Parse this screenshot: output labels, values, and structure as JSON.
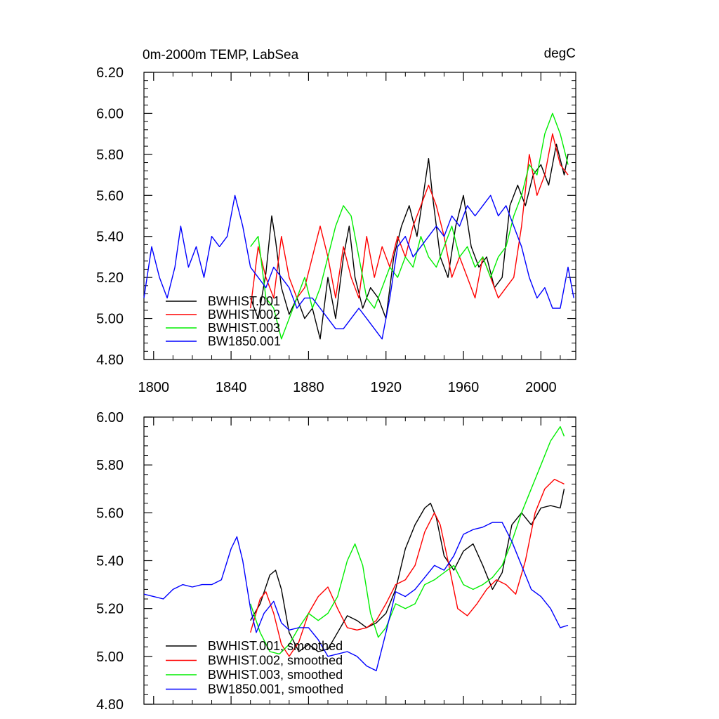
{
  "figure": {
    "title_left": "0m-2000m TEMP, LabSea",
    "title_right": "degC"
  },
  "colors": {
    "BWHIST.001": "#000000",
    "BWHIST.002": "#ff0000",
    "BWHIST.003": "#00ee00",
    "BW1850.001": "#0000ff"
  },
  "chart_data": [
    {
      "type": "line",
      "title": "0m-2000m TEMP, LabSea",
      "units": "degC",
      "xlim": [
        1795,
        2018
      ],
      "ylim": [
        4.8,
        6.2
      ],
      "xticks": [
        1800,
        1840,
        1880,
        1920,
        1960,
        2000
      ],
      "xtick_labels": [
        "1800",
        "1840",
        "1880",
        "1920",
        "1960",
        "2000"
      ],
      "yticks": [
        4.8,
        5.0,
        5.2,
        5.4,
        5.6,
        5.8,
        6.0,
        6.2
      ],
      "ytick_labels": [
        "4.80",
        "5.00",
        "5.20",
        "5.40",
        "5.60",
        "5.80",
        "6.00",
        "6.20"
      ],
      "legend_position": "bottom-left",
      "series": [
        {
          "name": "BWHIST.001",
          "key": "BWHIST.001",
          "x": [
            1850,
            1854,
            1858,
            1861,
            1863,
            1866,
            1870,
            1874,
            1878,
            1882,
            1886,
            1890,
            1894,
            1898,
            1901,
            1904,
            1908,
            1912,
            1916,
            1920,
            1924,
            1928,
            1932,
            1936,
            1940,
            1942,
            1944,
            1948,
            1952,
            1956,
            1960,
            1964,
            1968,
            1972,
            1976,
            1980,
            1984,
            1988,
            1992,
            1996,
            2000,
            2004,
            2008,
            2012,
            2014
          ],
          "y": [
            5.1,
            5.0,
            5.22,
            5.5,
            5.38,
            5.15,
            5.02,
            5.1,
            5.0,
            5.05,
            4.9,
            5.2,
            5.0,
            5.3,
            5.45,
            5.2,
            5.05,
            5.15,
            5.1,
            5.0,
            5.3,
            5.45,
            5.55,
            5.4,
            5.65,
            5.78,
            5.6,
            5.3,
            5.2,
            5.45,
            5.6,
            5.35,
            5.25,
            5.3,
            5.15,
            5.2,
            5.55,
            5.65,
            5.55,
            5.7,
            5.75,
            5.65,
            5.85,
            5.7,
            5.8
          ]
        },
        {
          "name": "BWHIST.002",
          "key": "BWHIST.002",
          "x": [
            1850,
            1854,
            1858,
            1862,
            1866,
            1870,
            1874,
            1878,
            1882,
            1886,
            1890,
            1894,
            1898,
            1902,
            1906,
            1910,
            1914,
            1918,
            1922,
            1926,
            1930,
            1934,
            1938,
            1942,
            1946,
            1950,
            1954,
            1958,
            1962,
            1966,
            1970,
            1974,
            1978,
            1982,
            1986,
            1990,
            1994,
            1998,
            2002,
            2006,
            2010,
            2014
          ],
          "y": [
            5.05,
            5.35,
            5.2,
            5.1,
            5.4,
            5.2,
            5.1,
            5.15,
            5.3,
            5.45,
            5.3,
            5.1,
            5.35,
            5.2,
            5.1,
            5.4,
            5.2,
            5.35,
            5.25,
            5.4,
            5.3,
            5.45,
            5.55,
            5.65,
            5.55,
            5.4,
            5.2,
            5.3,
            5.2,
            5.1,
            5.3,
            5.2,
            5.1,
            5.15,
            5.2,
            5.45,
            5.8,
            5.6,
            5.7,
            5.9,
            5.75,
            5.7
          ]
        },
        {
          "name": "BWHIST.003",
          "key": "BWHIST.003",
          "x": [
            1850,
            1854,
            1858,
            1862,
            1866,
            1870,
            1874,
            1878,
            1882,
            1886,
            1890,
            1894,
            1898,
            1902,
            1906,
            1910,
            1914,
            1918,
            1922,
            1926,
            1930,
            1934,
            1938,
            1942,
            1946,
            1950,
            1954,
            1958,
            1962,
            1966,
            1970,
            1974,
            1978,
            1982,
            1986,
            1990,
            1994,
            1998,
            2002,
            2006,
            2010,
            2014
          ],
          "y": [
            5.35,
            5.4,
            5.1,
            5.05,
            4.9,
            5.0,
            5.1,
            5.2,
            5.05,
            5.15,
            5.3,
            5.45,
            5.55,
            5.5,
            5.3,
            5.1,
            5.05,
            5.15,
            5.25,
            5.2,
            5.3,
            5.25,
            5.4,
            5.3,
            5.25,
            5.35,
            5.45,
            5.3,
            5.35,
            5.25,
            5.3,
            5.2,
            5.3,
            5.35,
            5.5,
            5.6,
            5.75,
            5.7,
            5.9,
            6.0,
            5.9,
            5.75
          ]
        },
        {
          "name": "BW1850.001",
          "key": "BW1850.001",
          "x": [
            1795,
            1799,
            1803,
            1807,
            1811,
            1814,
            1818,
            1822,
            1826,
            1830,
            1834,
            1838,
            1842,
            1846,
            1850,
            1854,
            1858,
            1862,
            1866,
            1870,
            1874,
            1878,
            1882,
            1886,
            1890,
            1894,
            1898,
            1902,
            1906,
            1910,
            1914,
            1918,
            1922,
            1926,
            1930,
            1934,
            1938,
            1942,
            1946,
            1950,
            1954,
            1958,
            1962,
            1966,
            1970,
            1974,
            1978,
            1982,
            1986,
            1990,
            1994,
            1998,
            2002,
            2006,
            2010,
            2014,
            2017
          ],
          "y": [
            5.1,
            5.35,
            5.2,
            5.1,
            5.25,
            5.45,
            5.25,
            5.35,
            5.2,
            5.4,
            5.35,
            5.4,
            5.6,
            5.45,
            5.25,
            5.2,
            5.15,
            5.25,
            5.2,
            5.15,
            5.05,
            5.1,
            5.1,
            5.05,
            5.0,
            4.95,
            4.95,
            5.0,
            5.05,
            5.0,
            4.95,
            4.9,
            5.1,
            5.35,
            5.4,
            5.3,
            5.35,
            5.4,
            5.45,
            5.4,
            5.5,
            5.45,
            5.55,
            5.5,
            5.55,
            5.6,
            5.5,
            5.55,
            5.45,
            5.35,
            5.2,
            5.1,
            5.15,
            5.05,
            5.05,
            5.25,
            5.1
          ]
        }
      ]
    },
    {
      "type": "line",
      "title": "",
      "xlim": [
        1795,
        2018
      ],
      "ylim": [
        4.8,
        6.0
      ],
      "xticks": [
        1800,
        1840,
        1880,
        1920,
        1960,
        2000
      ],
      "yticks": [
        4.8,
        5.0,
        5.2,
        5.4,
        5.6,
        5.8,
        6.0
      ],
      "ytick_labels": [
        "4.80",
        "5.00",
        "5.20",
        "5.40",
        "5.60",
        "5.80",
        "6.00"
      ],
      "legend_position": "bottom-left",
      "series": [
        {
          "name": "BWHIST.001, smoothed",
          "key": "BWHIST.001",
          "x": [
            1850,
            1855,
            1860,
            1863,
            1866,
            1870,
            1875,
            1880,
            1885,
            1890,
            1895,
            1900,
            1905,
            1910,
            1915,
            1920,
            1925,
            1930,
            1935,
            1940,
            1943,
            1946,
            1950,
            1955,
            1960,
            1965,
            1970,
            1975,
            1980,
            1985,
            1990,
            1995,
            2000,
            2005,
            2010,
            2012
          ],
          "y": [
            5.15,
            5.22,
            5.34,
            5.36,
            5.28,
            5.1,
            5.02,
            5.05,
            5.02,
            5.03,
            5.1,
            5.17,
            5.15,
            5.12,
            5.14,
            5.18,
            5.28,
            5.45,
            5.55,
            5.62,
            5.64,
            5.58,
            5.42,
            5.36,
            5.44,
            5.47,
            5.38,
            5.28,
            5.35,
            5.55,
            5.6,
            5.55,
            5.62,
            5.63,
            5.62,
            5.7
          ]
        },
        {
          "name": "BWHIST.002, smoothed",
          "key": "BWHIST.002",
          "x": [
            1850,
            1855,
            1858,
            1862,
            1866,
            1870,
            1875,
            1880,
            1885,
            1890,
            1895,
            1900,
            1905,
            1910,
            1915,
            1920,
            1925,
            1930,
            1935,
            1940,
            1945,
            1948,
            1952,
            1957,
            1962,
            1967,
            1972,
            1977,
            1982,
            1987,
            1992,
            1997,
            2002,
            2007,
            2012
          ],
          "y": [
            5.1,
            5.24,
            5.27,
            5.18,
            5.05,
            5.0,
            5.06,
            5.18,
            5.25,
            5.29,
            5.2,
            5.12,
            5.11,
            5.12,
            5.15,
            5.22,
            5.3,
            5.32,
            5.38,
            5.52,
            5.6,
            5.55,
            5.4,
            5.2,
            5.17,
            5.22,
            5.28,
            5.32,
            5.3,
            5.26,
            5.4,
            5.6,
            5.7,
            5.74,
            5.72
          ]
        },
        {
          "name": "BWHIST.003, smoothed",
          "key": "BWHIST.003",
          "x": [
            1850,
            1855,
            1860,
            1865,
            1870,
            1875,
            1880,
            1885,
            1890,
            1895,
            1900,
            1904,
            1908,
            1912,
            1916,
            1920,
            1925,
            1930,
            1935,
            1940,
            1945,
            1950,
            1955,
            1960,
            1965,
            1970,
            1975,
            1980,
            1985,
            1990,
            1995,
            2000,
            2005,
            2010,
            2012
          ],
          "y": [
            5.22,
            5.1,
            5.02,
            5.01,
            5.05,
            5.12,
            5.18,
            5.15,
            5.18,
            5.25,
            5.4,
            5.47,
            5.38,
            5.18,
            5.08,
            5.12,
            5.22,
            5.2,
            5.22,
            5.3,
            5.32,
            5.35,
            5.38,
            5.3,
            5.28,
            5.3,
            5.33,
            5.38,
            5.48,
            5.6,
            5.7,
            5.8,
            5.9,
            5.96,
            5.92
          ]
        },
        {
          "name": "BW1850.001, smoothed",
          "key": "BW1850.001",
          "x": [
            1795,
            1800,
            1805,
            1810,
            1815,
            1820,
            1825,
            1830,
            1835,
            1840,
            1843,
            1846,
            1850,
            1853,
            1857,
            1862,
            1866,
            1870,
            1875,
            1880,
            1885,
            1890,
            1895,
            1900,
            1905,
            1910,
            1915,
            1920,
            1925,
            1930,
            1935,
            1940,
            1945,
            1950,
            1955,
            1960,
            1965,
            1970,
            1975,
            1980,
            1985,
            1990,
            1995,
            2000,
            2005,
            2010,
            2014
          ],
          "y": [
            5.26,
            5.25,
            5.24,
            5.28,
            5.3,
            5.29,
            5.3,
            5.3,
            5.32,
            5.45,
            5.5,
            5.4,
            5.2,
            5.1,
            5.18,
            5.23,
            5.14,
            5.11,
            5.12,
            5.12,
            5.07,
            5.0,
            5.01,
            5.02,
            5.0,
            4.96,
            4.94,
            5.1,
            5.27,
            5.25,
            5.28,
            5.33,
            5.38,
            5.36,
            5.42,
            5.51,
            5.53,
            5.54,
            5.56,
            5.56,
            5.48,
            5.38,
            5.28,
            5.25,
            5.2,
            5.12,
            5.13
          ]
        }
      ]
    }
  ]
}
